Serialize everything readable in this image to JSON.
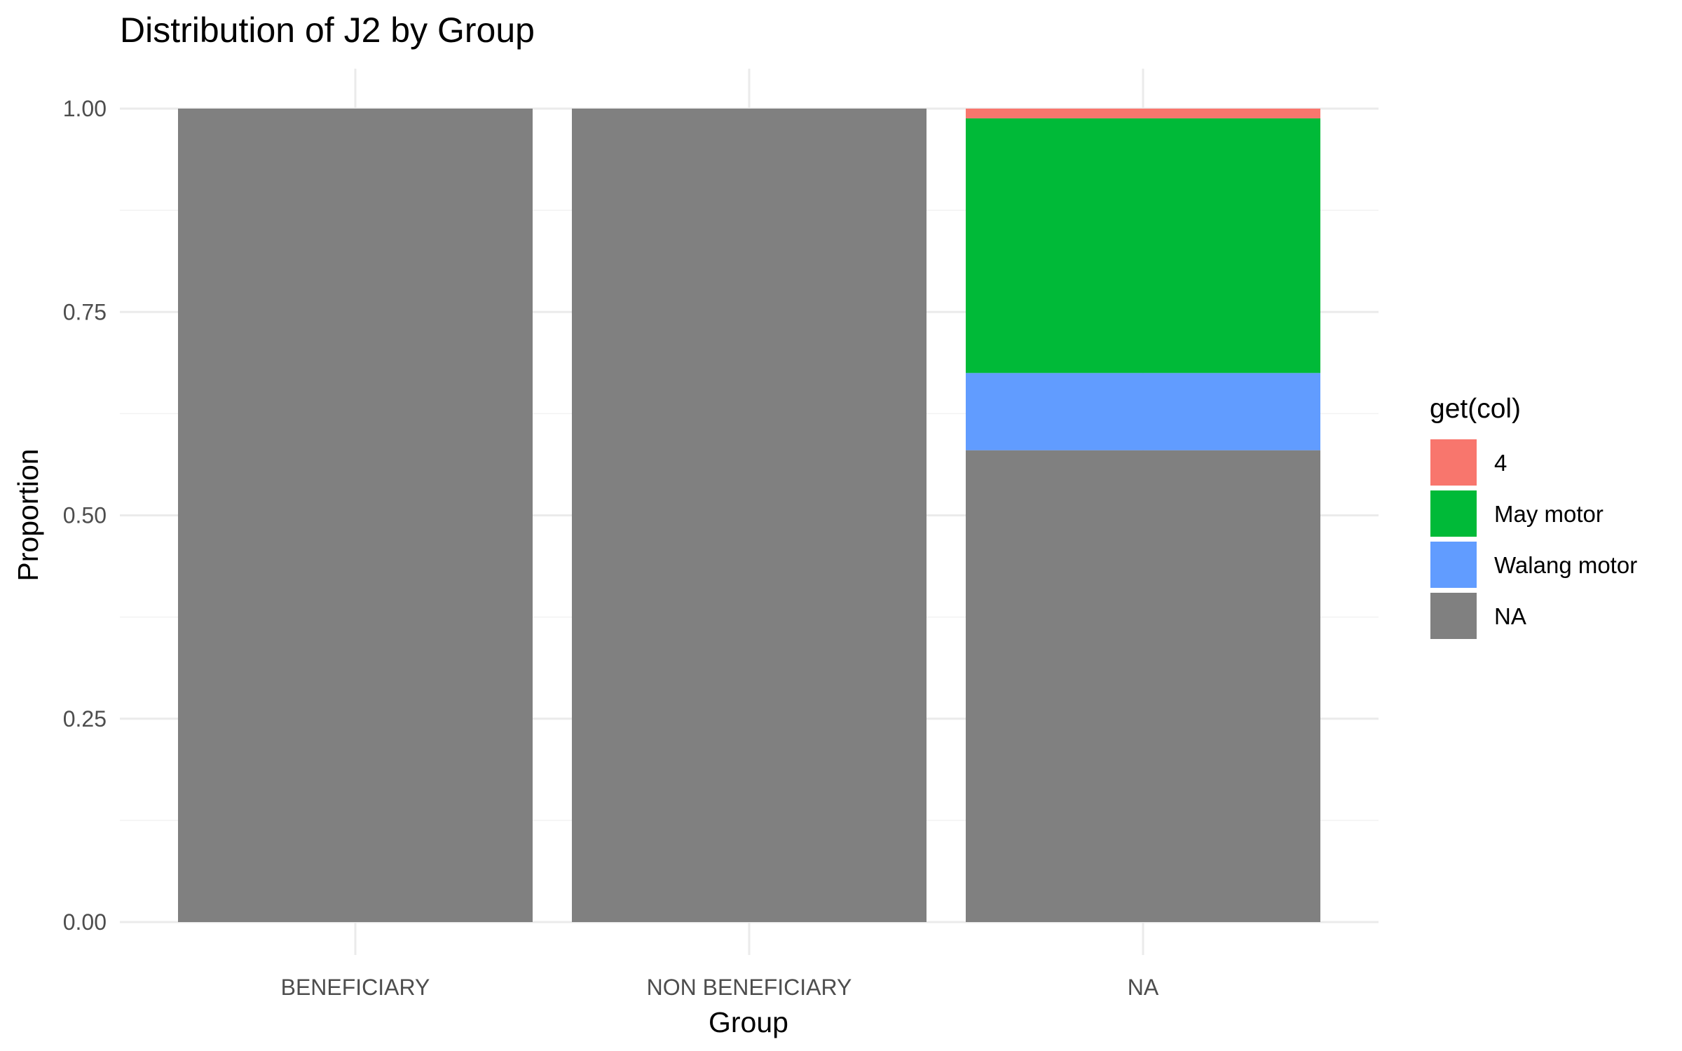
{
  "chart_data": {
    "type": "bar",
    "stacked": true,
    "title": "Distribution of J2 by Group",
    "xlabel": "Group",
    "ylabel": "Proportion",
    "categories": [
      "BENEFICIARY",
      "NON BENEFICIARY",
      "NA"
    ],
    "ylim": [
      0,
      1
    ],
    "yticks": [
      "0.00",
      "0.25",
      "0.50",
      "0.75",
      "1.00"
    ],
    "ytick_values": [
      0,
      0.25,
      0.5,
      0.75,
      1.0
    ],
    "grid": true,
    "legend": {
      "title": "get(col)",
      "position": "right",
      "entries": [
        {
          "label": "4",
          "color": "#F8766D"
        },
        {
          "label": "May motor",
          "color": "#00BA38"
        },
        {
          "label": "Walang motor",
          "color": "#619CFF"
        },
        {
          "label": "NA",
          "color": "#808080"
        }
      ]
    },
    "series": [
      {
        "name": "4",
        "color": "#F8766D",
        "values": [
          0,
          0,
          0.012
        ]
      },
      {
        "name": "May motor",
        "color": "#00BA38",
        "values": [
          0,
          0,
          0.313
        ]
      },
      {
        "name": "Walang motor",
        "color": "#619CFF",
        "values": [
          0,
          0,
          0.095
        ]
      },
      {
        "name": "NA",
        "color": "#808080",
        "values": [
          1.0,
          1.0,
          0.58
        ]
      }
    ]
  }
}
